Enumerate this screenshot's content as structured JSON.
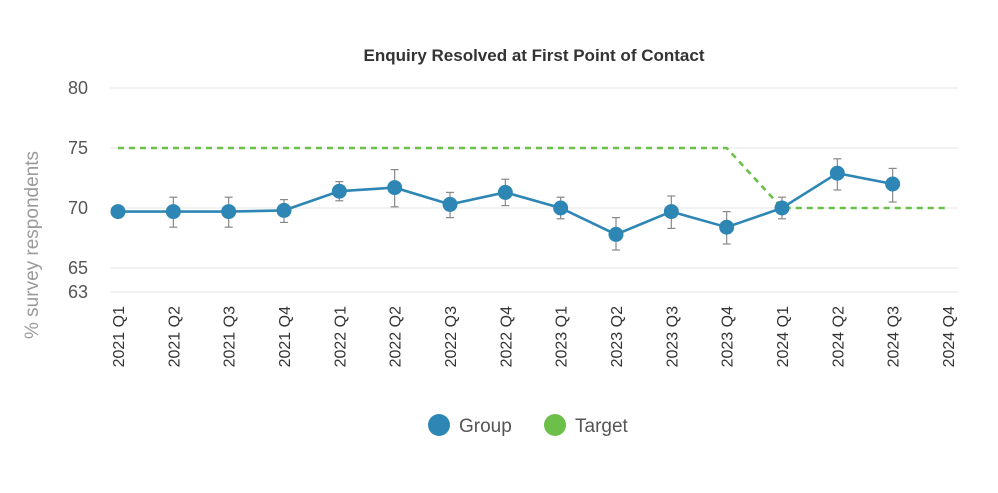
{
  "chart_data": {
    "type": "line",
    "title": "Enquiry Resolved at First Point of Contact",
    "ylabel": "% survey respondents",
    "xlabel": "",
    "ylim": [
      63,
      80
    ],
    "yticks": [
      80,
      75,
      70,
      65,
      63
    ],
    "grid": true,
    "legend": "bottom",
    "categories": [
      "2021 Q1",
      "2021 Q2",
      "2021 Q3",
      "2021 Q4",
      "2022 Q1",
      "2022 Q2",
      "2022 Q3",
      "2022 Q4",
      "2023 Q1",
      "2023 Q2",
      "2023 Q3",
      "2023 Q4",
      "2024 Q1",
      "2024 Q2",
      "2024 Q3",
      "2024 Q4"
    ],
    "series": [
      {
        "name": "Group",
        "color": "#2e86b5",
        "style": "solid-markers",
        "values": [
          69.7,
          69.7,
          69.7,
          69.8,
          71.4,
          71.7,
          70.3,
          71.3,
          70.0,
          67.8,
          69.7,
          68.4,
          70.0,
          72.9,
          72.0,
          null
        ],
        "error_low": [
          null,
          68.4,
          68.4,
          68.8,
          70.6,
          70.1,
          69.2,
          70.2,
          69.1,
          66.5,
          68.3,
          67.0,
          69.1,
          71.5,
          70.5,
          null
        ],
        "error_high": [
          null,
          70.9,
          70.9,
          70.7,
          72.2,
          73.2,
          71.3,
          72.4,
          70.9,
          69.2,
          71.0,
          69.7,
          70.9,
          74.1,
          73.3,
          null
        ]
      },
      {
        "name": "Target",
        "color": "#6cc04a",
        "style": "dashed",
        "values": [
          75,
          75,
          75,
          75,
          75,
          75,
          75,
          75,
          75,
          75,
          75,
          75,
          70,
          70,
          70,
          70
        ]
      }
    ]
  }
}
